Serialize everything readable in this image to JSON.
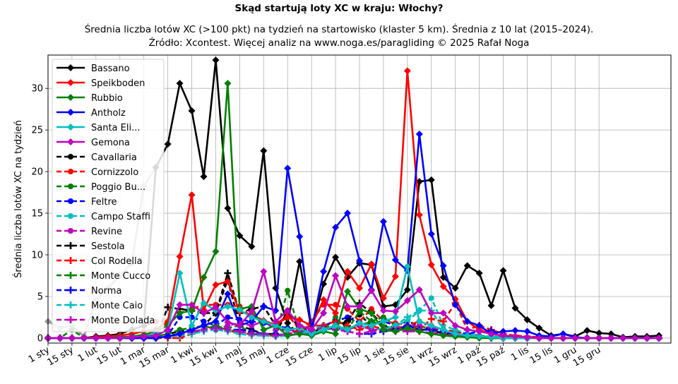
{
  "chart_data": {
    "type": "line",
    "title": "Skąd startują loty XC w kraju: Włochy?",
    "subtitle_lines": [
      "Średnia liczba lotów XC (>100 pkt) na tydzień na startowisko (klaster 5 km). Średnia z 10 lat (2015–2024).",
      "Źródło: Xcontest. Więcej analiz na www.noga.es/paragliding © 2025 Rafał Noga"
    ],
    "xlabel": "",
    "ylabel": "Średnia liczba lotów XC na tydzień",
    "xlim": [
      0,
      52
    ],
    "ylim": [
      -0.6,
      34
    ],
    "yticks": [
      0,
      5,
      10,
      15,
      20,
      25,
      30
    ],
    "x_ticks": [
      {
        "label": "1 sty",
        "week": 0
      },
      {
        "label": "15 sty",
        "week": 2
      },
      {
        "label": "1 lut",
        "week": 4
      },
      {
        "label": "15 lut",
        "week": 6
      },
      {
        "label": "1 mar",
        "week": 8
      },
      {
        "label": "15 mar",
        "week": 10
      },
      {
        "label": "1 kwi",
        "week": 12
      },
      {
        "label": "15 kwi",
        "week": 14
      },
      {
        "label": "1 maj",
        "week": 16
      },
      {
        "label": "15 maj",
        "week": 18
      },
      {
        "label": "1 cze",
        "week": 20
      },
      {
        "label": "15 cze",
        "week": 22
      },
      {
        "label": "1 lip",
        "week": 24
      },
      {
        "label": "15 lip",
        "week": 26
      },
      {
        "label": "1 sie",
        "week": 28
      },
      {
        "label": "15 sie",
        "week": 30
      },
      {
        "label": "1 wrz",
        "week": 32
      },
      {
        "label": "15 wrz",
        "week": 34
      },
      {
        "label": "1 paź",
        "week": 36
      },
      {
        "label": "15 paź",
        "week": 38
      },
      {
        "label": "1 lis",
        "week": 40
      },
      {
        "label": "15 lis",
        "week": 42
      },
      {
        "label": "1 gru",
        "week": 44
      },
      {
        "label": "15 gru",
        "week": 46
      }
    ],
    "grid": true,
    "legend_position": "upper-left",
    "background_series": {
      "color": "#999999",
      "values": [
        2.0,
        1.2,
        1.5,
        0.2,
        4.5,
        6.0,
        7.5,
        9.0,
        18.3,
        20.5,
        null,
        null,
        null,
        null,
        null,
        null,
        null,
        null,
        null,
        null,
        null,
        null,
        null,
        null,
        null,
        null,
        null,
        null,
        null,
        null,
        null,
        null,
        null,
        null,
        null,
        null,
        null,
        null,
        null,
        null,
        null,
        null,
        null,
        null,
        null,
        null,
        null,
        null,
        null,
        null,
        null,
        null
      ]
    },
    "series": [
      {
        "name": "Bassano",
        "color": "#000000",
        "dash": "solid",
        "marker": "diamond",
        "values": [
          0,
          0,
          0,
          0,
          0.2,
          0.3,
          0.5,
          1.0,
          1.5,
          20.5,
          23.3,
          30.6,
          27.3,
          19.4,
          33.4,
          15.6,
          12.3,
          11.0,
          22.5,
          6.0,
          1.8,
          9.2,
          1.0,
          6.5,
          9.7,
          7.3,
          9.0,
          8.8,
          3.8,
          4.0,
          5.8,
          18.8,
          19.0,
          7.3,
          6.0,
          8.7,
          7.8,
          3.9,
          8.1,
          3.6,
          2.2,
          1.2,
          0.3,
          0.5,
          0.2,
          0.9,
          0.6,
          0.5,
          0.1,
          0.2,
          0.2,
          0.3
        ]
      },
      {
        "name": "Speikboden",
        "color": "#ff0000",
        "dash": "solid",
        "marker": "diamond",
        "values": [
          0,
          0,
          0,
          0,
          0.1,
          0.2,
          0.3,
          0.5,
          0.8,
          1.0,
          2.0,
          9.8,
          17.2,
          3.4,
          6.4,
          6.8,
          3.2,
          2.8,
          2.1,
          1.6,
          2.5,
          2.2,
          1.5,
          4.6,
          3.0,
          8.0,
          6.0,
          8.9,
          4.8,
          7.4,
          32.1,
          14.8,
          8.8,
          6.2,
          4.7,
          2.0,
          1.0,
          0.5,
          0.3,
          0.2,
          0.1,
          0.1,
          0,
          0,
          0,
          0,
          0,
          0,
          0,
          0,
          0,
          0
        ]
      },
      {
        "name": "Rubbio",
        "color": "#008000",
        "dash": "solid",
        "marker": "diamond",
        "values": [
          0,
          0,
          0,
          0,
          0,
          0,
          0.1,
          0.2,
          0.4,
          0.8,
          1.5,
          3.0,
          3.3,
          7.3,
          10.4,
          30.6,
          3.5,
          3.8,
          1.0,
          1.5,
          0.3,
          0.5,
          0.3,
          0.8,
          0.5,
          5.6,
          3.5,
          3.0,
          1.0,
          0.8,
          1.2,
          0.8,
          0.5,
          0.3,
          0.2,
          0.1,
          0,
          0,
          0,
          0,
          0,
          0,
          0,
          0,
          0,
          0,
          0,
          0,
          0,
          0,
          0,
          0
        ]
      },
      {
        "name": "Antholz",
        "color": "#0000ff",
        "dash": "solid",
        "marker": "diamond",
        "values": [
          0,
          0,
          0,
          0,
          0,
          0,
          0,
          0,
          0,
          0,
          0.2,
          0.5,
          1.0,
          1.5,
          2.0,
          5.3,
          1.5,
          2.0,
          3.8,
          3.3,
          20.4,
          12.2,
          1.0,
          8.0,
          13.3,
          15.0,
          9.3,
          5.8,
          14.0,
          9.4,
          8.1,
          24.5,
          12.5,
          8.7,
          4.0,
          2.0,
          1.5,
          0.5,
          0.8,
          0.9,
          0.8,
          0.3,
          0.2,
          0.5,
          0.1,
          0,
          0,
          0,
          0,
          0,
          0,
          0
        ]
      },
      {
        "name": "Santa Eli...",
        "color": "#00bfbf",
        "dash": "solid",
        "marker": "diamond",
        "values": [
          0,
          0,
          0,
          0,
          0,
          0,
          0,
          0.1,
          0.2,
          0.5,
          1.0,
          7.8,
          1.5,
          4.2,
          3.3,
          3.8,
          3.4,
          2.5,
          2.0,
          1.5,
          1.0,
          1.2,
          0.5,
          1.0,
          1.5,
          1.0,
          1.8,
          1.5,
          2.0,
          2.5,
          8.6,
          2.0,
          1.5,
          1.0,
          0.5,
          0.3,
          0.2,
          0.1,
          0,
          0,
          0,
          0,
          0,
          0,
          0,
          0,
          0,
          0,
          0,
          0,
          0,
          0
        ]
      },
      {
        "name": "Gemona",
        "color": "#bf00bf",
        "dash": "solid",
        "marker": "diamond",
        "values": [
          0,
          0,
          0,
          0,
          0,
          0,
          0,
          0.1,
          0.2,
          0.3,
          1.0,
          4.0,
          4.0,
          3.0,
          3.7,
          1.9,
          1.5,
          3.2,
          8.0,
          2.0,
          3.3,
          1.5,
          1.0,
          3.0,
          7.5,
          3.8,
          3.8,
          5.7,
          3.3,
          3.2,
          4.5,
          5.8,
          3.0,
          3.0,
          1.5,
          1.0,
          0.8,
          0.5,
          0.3,
          0.2,
          0.1,
          0,
          0,
          0,
          0,
          0,
          0,
          0,
          0,
          0,
          0,
          0
        ]
      },
      {
        "name": "Cavallaria",
        "color": "#000000",
        "dash": "dashed",
        "marker": "circle",
        "values": [
          0,
          0,
          0,
          0,
          0,
          0,
          0,
          0,
          0,
          0,
          0.5,
          0.8,
          1.0,
          1.5,
          3.0,
          7.0,
          1.5,
          1.0,
          0.5,
          0.5,
          3.3,
          1.0,
          0.5,
          1.0,
          1.5,
          2.0,
          2.8,
          1.5,
          1.0,
          1.5,
          2.0,
          1.5,
          1.0,
          1.0,
          0.5,
          0.3,
          0.2,
          0.1,
          0,
          0,
          0,
          0,
          0,
          0,
          0,
          0,
          0,
          0,
          0,
          0,
          0,
          0
        ]
      },
      {
        "name": "Cornizzolo",
        "color": "#ff0000",
        "dash": "dashed",
        "marker": "circle",
        "values": [
          0,
          0,
          0,
          0,
          0,
          0,
          0.5,
          1.0,
          1.5,
          2.0,
          1.5,
          3.0,
          3.5,
          4.0,
          4.0,
          4.0,
          3.8,
          2.5,
          2.0,
          1.5,
          2.8,
          1.0,
          2.0,
          4.0,
          4.0,
          3.5,
          2.0,
          3.5,
          2.0,
          1.8,
          1.5,
          2.0,
          1.5,
          1.0,
          0.8,
          0.5,
          0.3,
          0.2,
          0.1,
          0,
          0,
          0,
          0,
          0,
          0,
          0,
          0,
          0,
          0,
          0,
          0,
          0
        ]
      },
      {
        "name": "Poggio Bu...",
        "color": "#008000",
        "dash": "dashed",
        "marker": "circle",
        "values": [
          0,
          0,
          1.0,
          0,
          0,
          0,
          0,
          0,
          0.1,
          0.2,
          0.5,
          1.0,
          1.2,
          1.5,
          1.0,
          1.2,
          1.5,
          0.5,
          0.5,
          0.3,
          5.7,
          0.8,
          0.5,
          1.0,
          2.5,
          1.0,
          1.5,
          2.0,
          2.5,
          1.5,
          1.0,
          1.5,
          1.0,
          0.5,
          0.5,
          0.3,
          0.2,
          0.1,
          0,
          0,
          0,
          0,
          0,
          0,
          0,
          0,
          0,
          0,
          0,
          0,
          0,
          0
        ]
      },
      {
        "name": "Feltre",
        "color": "#0000ff",
        "dash": "dashed",
        "marker": "circle",
        "values": [
          0,
          0,
          0,
          0,
          0,
          0,
          0,
          0,
          0,
          0,
          0.3,
          2.5,
          2.5,
          2.0,
          1.5,
          2.5,
          2.2,
          2.0,
          1.8,
          1.5,
          1.2,
          1.0,
          1.5,
          1.5,
          2.0,
          2.5,
          1.8,
          1.5,
          2.0,
          1.5,
          1.0,
          1.0,
          1.0,
          0.5,
          0.5,
          0.3,
          0.2,
          0.1,
          0,
          0,
          0,
          0,
          0,
          0,
          0,
          0,
          0,
          0,
          0,
          0,
          0,
          0
        ]
      },
      {
        "name": "Campo Staffi",
        "color": "#00bfbf",
        "dash": "dashed",
        "marker": "circle",
        "values": [
          0,
          0,
          0,
          0,
          0,
          0,
          0,
          0,
          0,
          0,
          0.2,
          0.5,
          0.8,
          1.0,
          1.5,
          1.0,
          0.8,
          0.5,
          0.5,
          0.3,
          0.5,
          0.8,
          1.0,
          1.5,
          1.0,
          1.2,
          1.5,
          1.2,
          1.0,
          1.5,
          2.0,
          3.3,
          4.8,
          1.5,
          1.0,
          0.5,
          0.3,
          0.2,
          0.1,
          0,
          0,
          0,
          0,
          0,
          0,
          0,
          0,
          0,
          0,
          0,
          0,
          0
        ]
      },
      {
        "name": "Revine",
        "color": "#bf00bf",
        "dash": "dashed",
        "marker": "circle",
        "values": [
          0,
          0,
          0,
          0,
          0,
          0,
          0,
          0,
          0,
          0,
          0.2,
          0.5,
          1.0,
          1.5,
          1.0,
          1.5,
          1.8,
          1.5,
          2.0,
          1.0,
          1.0,
          0.8,
          0.5,
          1.0,
          1.2,
          1.0,
          1.5,
          1.0,
          1.0,
          1.2,
          1.5,
          1.5,
          1.2,
          1.0,
          0.5,
          0.3,
          0.2,
          0.1,
          0,
          0,
          0,
          0,
          0,
          0,
          0,
          0,
          0,
          0,
          0,
          0,
          0,
          0
        ]
      },
      {
        "name": "Sestola",
        "color": "#000000",
        "dash": "dashed",
        "marker": "plus",
        "values": [
          0,
          0,
          0,
          0,
          0,
          0,
          0,
          0,
          0,
          0,
          3.7,
          3.5,
          3.3,
          3.0,
          3.0,
          7.8,
          3.0,
          3.5,
          3.8,
          1.5,
          1.0,
          1.5,
          0.5,
          1.5,
          1.0,
          2.0,
          4.2,
          3.0,
          1.5,
          1.0,
          1.5,
          1.0,
          1.0,
          0.5,
          0.5,
          0.3,
          0.2,
          0.1,
          0,
          0,
          0,
          0,
          0,
          0,
          0,
          0,
          0,
          0,
          0,
          0,
          0,
          0
        ]
      },
      {
        "name": "Col Rodella",
        "color": "#ff0000",
        "dash": "dashed",
        "marker": "plus",
        "values": [
          0,
          0,
          0,
          0,
          0,
          0,
          0,
          0,
          0,
          0,
          0,
          0,
          0.5,
          1.0,
          1.5,
          1.0,
          0.5,
          0.5,
          0.3,
          0.3,
          0.5,
          1.0,
          1.5,
          1.5,
          2.0,
          1.5,
          1.0,
          1.5,
          1.0,
          1.0,
          1.5,
          1.0,
          2.3,
          2.0,
          4.2,
          1.0,
          1.5,
          1.0,
          0.5,
          0.3,
          0.2,
          0.1,
          0,
          0,
          0,
          0,
          0,
          0,
          0,
          0,
          0,
          0
        ]
      },
      {
        "name": "Monte Cucco",
        "color": "#008000",
        "dash": "dashed",
        "marker": "plus",
        "values": [
          0,
          0,
          0,
          0,
          0,
          0,
          0,
          0,
          0,
          0,
          0.3,
          0.5,
          0.8,
          1.0,
          1.5,
          1.0,
          0.8,
          0.5,
          0.5,
          0.3,
          0.5,
          0.8,
          1.0,
          1.2,
          1.5,
          1.0,
          3.2,
          2.0,
          1.5,
          1.0,
          1.0,
          0.8,
          0.5,
          0.5,
          0.3,
          0.2,
          0.1,
          0,
          0,
          0,
          0,
          0,
          0,
          0,
          0,
          0,
          0,
          0,
          0,
          0,
          0,
          0
        ]
      },
      {
        "name": "Norma",
        "color": "#0000ff",
        "dash": "dashed",
        "marker": "plus",
        "values": [
          0,
          0,
          0,
          0,
          0,
          0,
          0,
          0,
          0,
          0,
          0.2,
          0.5,
          0.8,
          1.0,
          1.2,
          1.0,
          1.0,
          0.8,
          0.5,
          0.5,
          0.3,
          0.5,
          0.8,
          1.0,
          1.2,
          0.8,
          0.5,
          0.5,
          0.8,
          1.0,
          1.5,
          1.0,
          1.0,
          0.8,
          0.5,
          0.5,
          0.8,
          0.9,
          0.3,
          0.1,
          0,
          0,
          0,
          0,
          0,
          0,
          0,
          0,
          0,
          0,
          0,
          0
        ]
      },
      {
        "name": "Monte Caio",
        "color": "#00bfbf",
        "dash": "dashed",
        "marker": "plus",
        "values": [
          0,
          0,
          0,
          0,
          0,
          0,
          0,
          0,
          0,
          0,
          0.2,
          0.3,
          0.5,
          0.8,
          1.0,
          0.8,
          0.5,
          0.3,
          0.3,
          0.2,
          0.3,
          0.5,
          0.8,
          1.0,
          1.2,
          0.8,
          0.5,
          0.8,
          1.0,
          1.5,
          2.5,
          3.3,
          3.3,
          1.0,
          0.5,
          0.3,
          0.2,
          0.1,
          0,
          0,
          0,
          0,
          0,
          0,
          0,
          0,
          0,
          0,
          0,
          0,
          0,
          0
        ]
      },
      {
        "name": "Monte Dolada",
        "color": "#bf00bf",
        "dash": "dashed",
        "marker": "plus",
        "values": [
          0,
          0,
          0,
          0,
          0,
          0,
          0,
          0,
          0,
          0,
          0.2,
          0.5,
          0.8,
          1.0,
          1.2,
          1.0,
          0.8,
          0.5,
          0.5,
          0.3,
          0.5,
          0.8,
          1.0,
          1.2,
          1.0,
          0.8,
          0.5,
          0.8,
          1.0,
          0.8,
          0.8,
          0.8,
          0.6,
          0.5,
          0.3,
          0.2,
          0.1,
          0,
          0,
          0,
          0,
          0,
          0,
          0,
          0,
          0,
          0,
          0,
          0,
          0,
          0,
          0
        ]
      }
    ]
  }
}
